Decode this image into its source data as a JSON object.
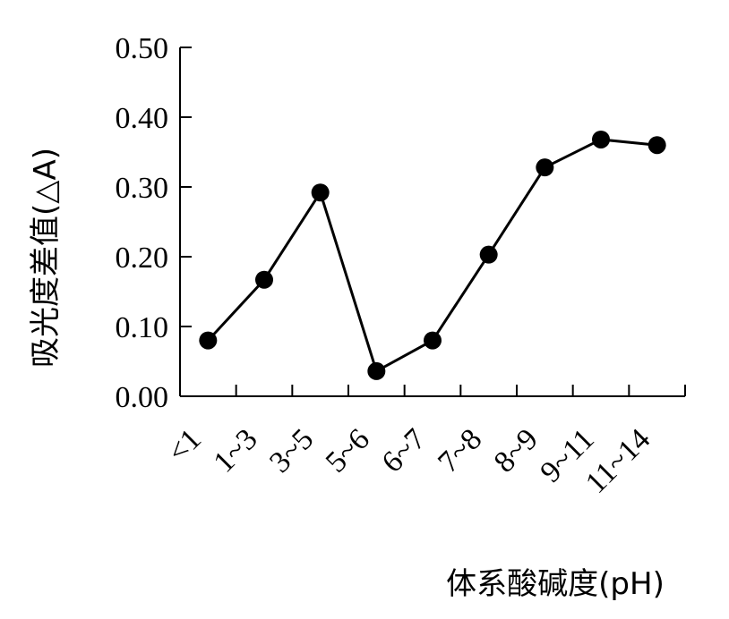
{
  "chart_data": {
    "type": "line",
    "title": "",
    "xlabel": "体系酸碱度(pH)",
    "ylabel": "吸光度差值(△A)",
    "categories": [
      "<1",
      "1~3",
      "3~5",
      "5~6",
      "6~7",
      "7~8",
      "8~9",
      "9~11",
      "11~14"
    ],
    "series": [
      {
        "values": [
          0.08,
          0.167,
          0.292,
          0.036,
          0.08,
          0.203,
          0.328,
          0.368,
          0.36
        ]
      }
    ],
    "ylim": [
      0,
      0.5
    ],
    "yticks": [
      "0.00",
      "0.10",
      "0.20",
      "0.30",
      "0.40",
      "0.50"
    ],
    "grid": false,
    "legend": "none",
    "line_color": "#000000",
    "marker_color": "#000000"
  }
}
